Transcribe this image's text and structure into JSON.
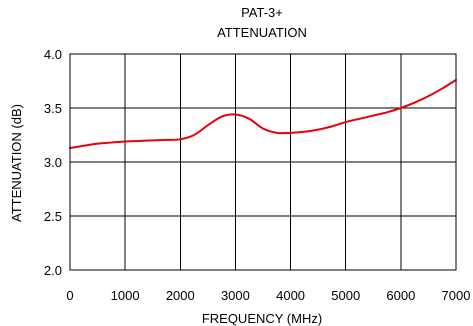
{
  "chart_data": {
    "type": "line",
    "title": "PAT-3+",
    "subtitle": "ATTENUATION",
    "xlabel": "FREQUENCY (MHz)",
    "ylabel": "ATTENUATION (dB)",
    "xlim": [
      0,
      7000
    ],
    "ylim": [
      2.0,
      4.0
    ],
    "x_ticks": [
      0,
      1000,
      2000,
      3000,
      4000,
      5000,
      6000,
      7000
    ],
    "y_ticks": [
      "2.0",
      "2.5",
      "3.0",
      "3.5",
      "4.0"
    ],
    "grid": true,
    "series": [
      {
        "color": "#e8000b",
        "x": [
          0,
          250,
          500,
          750,
          1000,
          1250,
          1500,
          1750,
          2000,
          2250,
          2500,
          2750,
          3000,
          3250,
          3500,
          3750,
          4000,
          4250,
          4500,
          4750,
          5000,
          5250,
          5500,
          5750,
          6000,
          6250,
          6500,
          6750,
          7000
        ],
        "values": [
          3.13,
          3.15,
          3.17,
          3.18,
          3.19,
          3.195,
          3.2,
          3.205,
          3.21,
          3.25,
          3.34,
          3.42,
          3.44,
          3.4,
          3.31,
          3.27,
          3.27,
          3.28,
          3.3,
          3.33,
          3.37,
          3.4,
          3.43,
          3.46,
          3.5,
          3.55,
          3.61,
          3.68,
          3.76
        ]
      }
    ]
  }
}
